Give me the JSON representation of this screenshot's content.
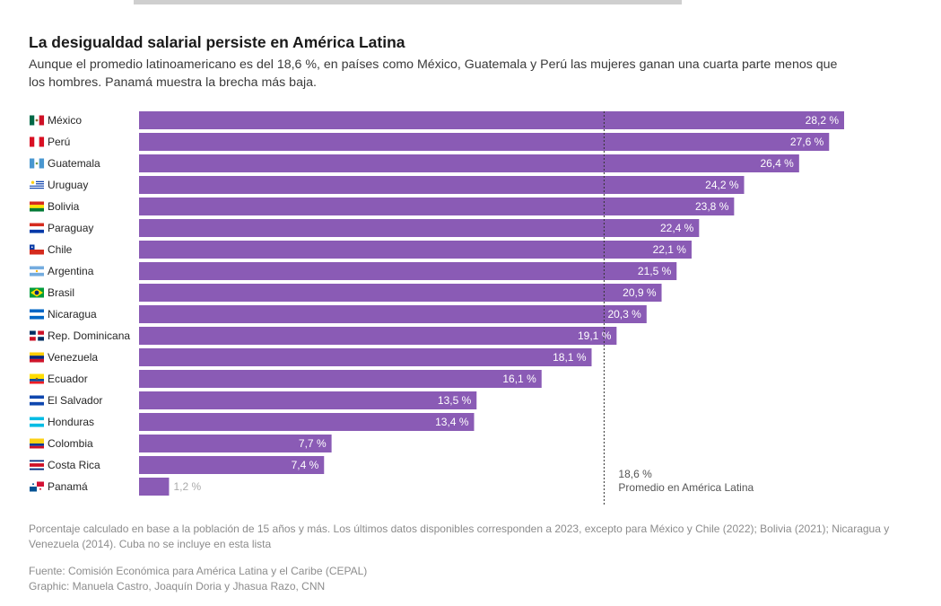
{
  "header": {
    "title": "La desigualdad salarial persiste en América Latina",
    "subtitle": "Aunque el promedio latinoamericano es del 18,6 %, en países como México, Guatemala y Perú las mujeres ganan una cuarta parte menos que los hombres. Panamá muestra la brecha más baja."
  },
  "footer": {
    "note": "Porcentaje calculado en base a la población de 15 años y más. Los últimos datos disponibles corresponden a 2023, excepto para México y Chile (2022); Bolivia (2021); Nicaragua y Venezuela (2014). Cuba no se incluye en esta lista",
    "source": "Fuente: Comisión Económica para América Latina y el Caribe (CEPAL)",
    "credit": "Graphic: Manuela Castro, Joaquín Doria y Jhasua Razo, CNN"
  },
  "colors": {
    "bar": "#8a5bb5",
    "bar_label_inside": "#ffffff",
    "bar_label_outside": "#aaaaaa",
    "reference_line": "#333333",
    "reference_text": "#555555"
  },
  "chart_data": {
    "type": "bar",
    "orientation": "horizontal",
    "unit": "%",
    "categories": [
      "México",
      "Perú",
      "Guatemala",
      "Uruguay",
      "Bolivia",
      "Paraguay",
      "Chile",
      "Argentina",
      "Brasil",
      "Nicaragua",
      "Rep. Dominicana",
      "Venezuela",
      "Ecuador",
      "El Salvador",
      "Honduras",
      "Colombia",
      "Costa Rica",
      "Panamá"
    ],
    "values": [
      28.2,
      27.6,
      26.4,
      24.2,
      23.8,
      22.4,
      22.1,
      21.5,
      20.9,
      20.3,
      19.1,
      18.1,
      16.1,
      13.5,
      13.4,
      7.7,
      7.4,
      1.2
    ],
    "value_labels": [
      "28,2 %",
      "27,6 %",
      "26,4 %",
      "24,2 %",
      "23,8 %",
      "22,4 %",
      "22,1 %",
      "21,5 %",
      "20,9 %",
      "20,3 %",
      "19,1 %",
      "18,1 %",
      "16,1 %",
      "13,5 %",
      "13,4 %",
      "7,7 %",
      "7,4 %",
      "1,2 %"
    ],
    "flags": [
      "mexico-flag",
      "peru-flag",
      "guatemala-flag",
      "uruguay-flag",
      "bolivia-flag",
      "paraguay-flag",
      "chile-flag",
      "argentina-flag",
      "brazil-flag",
      "nicaragua-flag",
      "dominican-republic-flag",
      "venezuela-flag",
      "ecuador-flag",
      "el-salvador-flag",
      "honduras-flag",
      "colombia-flag",
      "costa-rica-flag",
      "panama-flag"
    ],
    "xlim": [
      0,
      28.2
    ],
    "reference_line": {
      "value": 18.6,
      "label_value": "18,6 %",
      "label": "Promedio en América Latina"
    }
  }
}
